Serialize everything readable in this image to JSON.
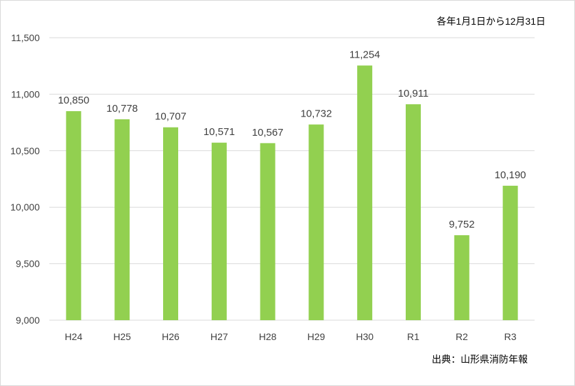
{
  "chart_data": {
    "type": "bar",
    "categories": [
      "H24",
      "H25",
      "H26",
      "H27",
      "H28",
      "H29",
      "H30",
      "R1",
      "R2",
      "R3"
    ],
    "values": [
      10850,
      10778,
      10707,
      10571,
      10567,
      10732,
      11254,
      10911,
      9752,
      10190
    ],
    "value_labels": [
      "10,850",
      "10,778",
      "10,707",
      "10,571",
      "10,567",
      "10,732",
      "11,254",
      "10,911",
      "9,752",
      "10,190"
    ],
    "ylim": [
      9000,
      11500
    ],
    "yticks": [
      9000,
      9500,
      10000,
      10500,
      11000,
      11500
    ],
    "ytick_labels": [
      "9,000",
      "9,500",
      "10,000",
      "10,500",
      "11,000",
      "11,500"
    ],
    "grid": true,
    "legend": "none",
    "bar_color": "#92d050",
    "grid_color": "#d9d9d9"
  },
  "notes": {
    "period": "各年1月1日から12月31日",
    "source": "出典：山形県消防年報"
  }
}
